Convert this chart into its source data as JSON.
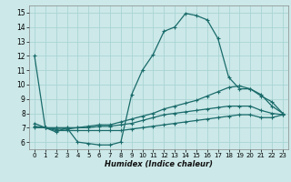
{
  "xlabel": "Humidex (Indice chaleur)",
  "xlim": [
    -0.5,
    23.5
  ],
  "ylim": [
    5.5,
    15.5
  ],
  "yticks": [
    6,
    7,
    8,
    9,
    10,
    11,
    12,
    13,
    14,
    15
  ],
  "xticks": [
    0,
    1,
    2,
    3,
    4,
    5,
    6,
    7,
    8,
    9,
    10,
    11,
    12,
    13,
    14,
    15,
    16,
    17,
    18,
    19,
    20,
    21,
    22,
    23
  ],
  "bg_color": "#cce8e8",
  "line_color": "#1a6b6b",
  "grid_color": "#aad4d4",
  "lines": [
    {
      "x": [
        0,
        1,
        2,
        3,
        4,
        5,
        6,
        7,
        8,
        9,
        10,
        11,
        12,
        13,
        14,
        15,
        16,
        17,
        18,
        19,
        20,
        21,
        22,
        23
      ],
      "y": [
        12,
        7,
        6.7,
        7,
        6.0,
        5.9,
        5.8,
        5.8,
        6.0,
        9.3,
        11.0,
        12.1,
        13.7,
        14.0,
        14.95,
        14.8,
        14.5,
        13.2,
        10.5,
        9.7,
        9.7,
        9.3,
        8.5,
        8.0
      ]
    },
    {
      "x": [
        0,
        1,
        2,
        3,
        4,
        5,
        6,
        7,
        8,
        9,
        10,
        11,
        12,
        13,
        14,
        15,
        16,
        17,
        18,
        19,
        20,
        21,
        22,
        23
      ],
      "y": [
        7.3,
        7.0,
        7.0,
        7.0,
        7.0,
        7.1,
        7.2,
        7.2,
        7.4,
        7.6,
        7.8,
        8.0,
        8.3,
        8.5,
        8.7,
        8.9,
        9.2,
        9.5,
        9.8,
        9.9,
        9.7,
        9.2,
        8.8,
        8.0
      ]
    },
    {
      "x": [
        0,
        1,
        2,
        3,
        4,
        5,
        6,
        7,
        8,
        9,
        10,
        11,
        12,
        13,
        14,
        15,
        16,
        17,
        18,
        19,
        20,
        21,
        22,
        23
      ],
      "y": [
        7.1,
        7.0,
        6.9,
        6.9,
        7.0,
        7.0,
        7.1,
        7.1,
        7.2,
        7.3,
        7.5,
        7.7,
        7.9,
        8.0,
        8.1,
        8.2,
        8.3,
        8.4,
        8.5,
        8.5,
        8.5,
        8.2,
        8.0,
        7.9
      ]
    },
    {
      "x": [
        0,
        1,
        2,
        3,
        4,
        5,
        6,
        7,
        8,
        9,
        10,
        11,
        12,
        13,
        14,
        15,
        16,
        17,
        18,
        19,
        20,
        21,
        22,
        23
      ],
      "y": [
        7.0,
        7.0,
        6.8,
        6.8,
        6.8,
        6.8,
        6.8,
        6.8,
        6.8,
        6.9,
        7.0,
        7.1,
        7.2,
        7.3,
        7.4,
        7.5,
        7.6,
        7.7,
        7.8,
        7.9,
        7.9,
        7.7,
        7.7,
        7.9
      ]
    }
  ]
}
